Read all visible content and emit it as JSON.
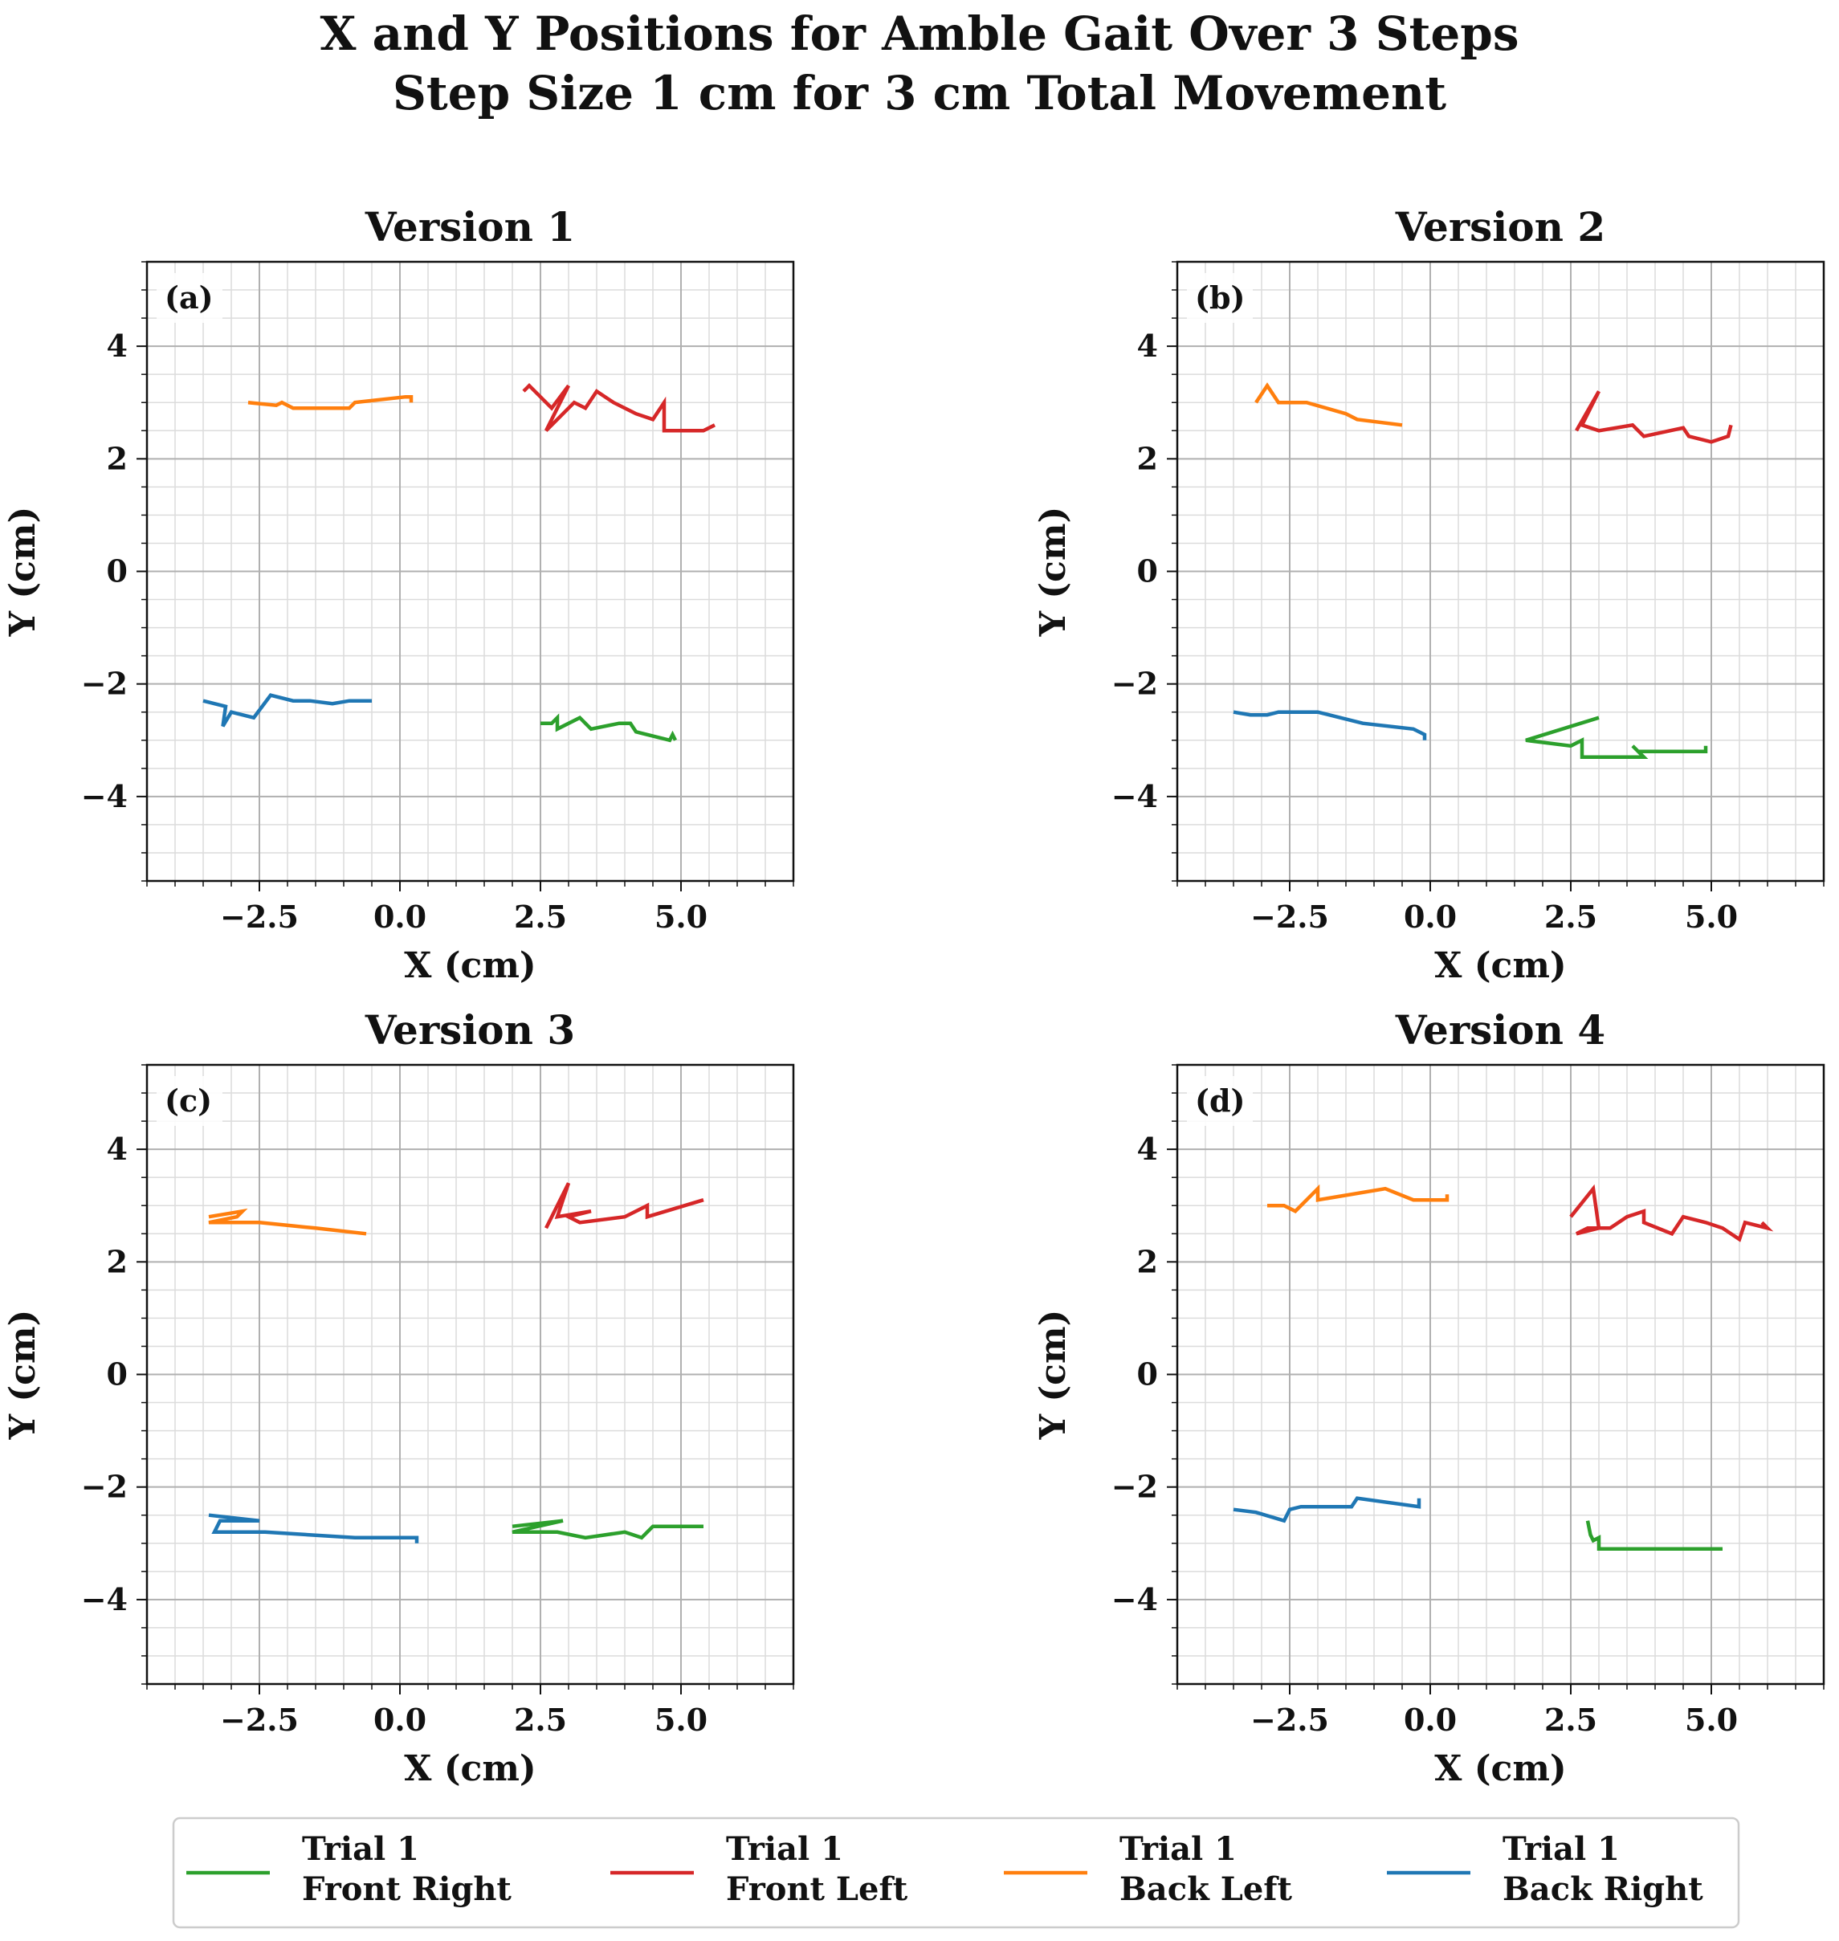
{
  "figure": {
    "title_line1": "X and Y Positions for Amble Gait Over 3 Steps",
    "title_line2": "Step Size 1 cm for 3 cm Total Movement"
  },
  "colors": {
    "front_right": "#2ca02c",
    "front_left": "#d62728",
    "back_left": "#ff7f0e",
    "back_right": "#1f77b4",
    "grid_major": "#b0b0b0",
    "grid_minor": "#dcdcdc"
  },
  "legend": {
    "placement": "bottom-center",
    "items": [
      {
        "line1": "Trial 1",
        "line2": "Front Right",
        "color_key": "front_right"
      },
      {
        "line1": "Trial 1",
        "line2": "Front Left",
        "color_key": "front_left"
      },
      {
        "line1": "Trial 1",
        "line2": "Back Left",
        "color_key": "back_left"
      },
      {
        "line1": "Trial 1",
        "line2": "Back Right",
        "color_key": "back_right"
      }
    ]
  },
  "chart_data": [
    {
      "type": "line",
      "title": "Version 1",
      "panel_label": "(a)",
      "xlabel": "X (cm)",
      "ylabel": "Y (cm)",
      "xlim": [
        -4.5,
        7.0
      ],
      "ylim": [
        -5.5,
        5.5
      ],
      "xticks": [
        -2.5,
        0.0,
        2.5,
        5.0
      ],
      "xtick_labels": [
        "−2.5",
        "0.0",
        "2.5",
        "5.0"
      ],
      "yticks": [
        -4,
        -2,
        0,
        2,
        4
      ],
      "ytick_labels": [
        "−4",
        "−2",
        "0",
        "2",
        "4"
      ],
      "grid": true,
      "series": [
        {
          "key": "back_left",
          "x": [
            -2.7,
            -2.2,
            -2.1,
            -1.9,
            -0.9,
            -0.8,
            0.1,
            0.2,
            0.2
          ],
          "y": [
            3.0,
            2.95,
            3.0,
            2.9,
            2.9,
            3.0,
            3.1,
            3.1,
            3.0
          ]
        },
        {
          "key": "front_left",
          "x": [
            2.2,
            2.3,
            2.5,
            2.7,
            3.0,
            2.6,
            3.1,
            3.3,
            3.5,
            3.8,
            4.2,
            4.5,
            4.7,
            4.7,
            5.1,
            5.4,
            5.6
          ],
          "y": [
            3.2,
            3.3,
            3.1,
            2.9,
            3.3,
            2.5,
            3.0,
            2.9,
            3.2,
            3.0,
            2.8,
            2.7,
            3.0,
            2.5,
            2.5,
            2.5,
            2.6
          ]
        },
        {
          "key": "back_right",
          "x": [
            -3.5,
            -3.1,
            -3.15,
            -3.0,
            -2.6,
            -2.3,
            -1.9,
            -1.6,
            -1.2,
            -0.9,
            -0.5
          ],
          "y": [
            -2.3,
            -2.4,
            -2.75,
            -2.5,
            -2.6,
            -2.2,
            -2.3,
            -2.3,
            -2.35,
            -2.3,
            -2.3
          ]
        },
        {
          "key": "front_right",
          "x": [
            2.5,
            2.7,
            2.8,
            2.8,
            3.2,
            3.4,
            3.9,
            4.1,
            4.2,
            4.4,
            4.8,
            4.85,
            4.9
          ],
          "y": [
            -2.7,
            -2.7,
            -2.6,
            -2.8,
            -2.6,
            -2.8,
            -2.7,
            -2.7,
            -2.85,
            -2.9,
            -3.0,
            -2.9,
            -3.0
          ]
        }
      ]
    },
    {
      "type": "line",
      "title": "Version 2",
      "panel_label": "(b)",
      "xlabel": "X (cm)",
      "ylabel": "Y (cm)",
      "xlim": [
        -4.5,
        7.0
      ],
      "ylim": [
        -5.5,
        5.5
      ],
      "xticks": [
        -2.5,
        0.0,
        2.5,
        5.0
      ],
      "xtick_labels": [
        "−2.5",
        "0.0",
        "2.5",
        "5.0"
      ],
      "yticks": [
        -4,
        -2,
        0,
        2,
        4
      ],
      "ytick_labels": [
        "−4",
        "−2",
        "0",
        "2",
        "4"
      ],
      "grid": true,
      "series": [
        {
          "key": "back_left",
          "x": [
            -3.1,
            -2.9,
            -2.7,
            -2.2,
            -1.5,
            -1.3,
            -0.5
          ],
          "y": [
            3.0,
            3.3,
            3.0,
            3.0,
            2.8,
            2.7,
            2.6
          ]
        },
        {
          "key": "front_left",
          "x": [
            2.6,
            3.0,
            2.7,
            3.0,
            3.6,
            3.8,
            4.5,
            4.6,
            5.0,
            5.3,
            5.35
          ],
          "y": [
            2.5,
            3.2,
            2.6,
            2.5,
            2.6,
            2.4,
            2.55,
            2.4,
            2.3,
            2.4,
            2.6
          ]
        },
        {
          "key": "back_right",
          "x": [
            -3.5,
            -3.2,
            -2.9,
            -2.7,
            -2.0,
            -1.2,
            -0.3,
            -0.1,
            -0.1
          ],
          "y": [
            -2.5,
            -2.55,
            -2.55,
            -2.5,
            -2.5,
            -2.7,
            -2.8,
            -2.9,
            -3.0
          ]
        },
        {
          "key": "front_right",
          "x": [
            3.0,
            1.7,
            2.5,
            2.7,
            2.7,
            3.8,
            3.6,
            3.7,
            4.9,
            4.9
          ],
          "y": [
            -2.6,
            -3.0,
            -3.1,
            -3.0,
            -3.3,
            -3.3,
            -3.1,
            -3.2,
            -3.2,
            -3.1
          ]
        }
      ]
    },
    {
      "type": "line",
      "title": "Version 3",
      "panel_label": "(c)",
      "xlabel": "X (cm)",
      "ylabel": "Y (cm)",
      "xlim": [
        -4.5,
        7.0
      ],
      "ylim": [
        -5.5,
        5.5
      ],
      "xticks": [
        -2.5,
        0.0,
        2.5,
        5.0
      ],
      "xtick_labels": [
        "−2.5",
        "0.0",
        "2.5",
        "5.0"
      ],
      "yticks": [
        -4,
        -2,
        0,
        2,
        4
      ],
      "ytick_labels": [
        "−4",
        "−2",
        "0",
        "2",
        "4"
      ],
      "grid": true,
      "series": [
        {
          "key": "back_left",
          "x": [
            -3.4,
            -2.8,
            -2.9,
            -3.4,
            -2.5,
            -1.5,
            -0.6
          ],
          "y": [
            2.8,
            2.9,
            2.8,
            2.7,
            2.7,
            2.6,
            2.5
          ]
        },
        {
          "key": "front_left",
          "x": [
            2.6,
            3.0,
            2.8,
            3.4,
            3.0,
            3.2,
            4.0,
            4.4,
            4.4,
            5.4
          ],
          "y": [
            2.6,
            3.4,
            2.8,
            2.9,
            2.8,
            2.7,
            2.8,
            3.0,
            2.8,
            3.1
          ]
        },
        {
          "key": "back_right",
          "x": [
            -3.4,
            -2.5,
            -3.2,
            -3.3,
            -2.4,
            -0.8,
            -0.4,
            -0.1,
            0.3,
            0.3
          ],
          "y": [
            -2.5,
            -2.6,
            -2.6,
            -2.8,
            -2.8,
            -2.9,
            -2.9,
            -2.9,
            -2.9,
            -3.0
          ]
        },
        {
          "key": "front_right",
          "x": [
            2.0,
            2.9,
            2.9,
            2.0,
            2.8,
            3.3,
            4.0,
            4.3,
            4.5,
            4.6,
            5.4
          ],
          "y": [
            -2.7,
            -2.6,
            -2.6,
            -2.8,
            -2.8,
            -2.9,
            -2.8,
            -2.9,
            -2.7,
            -2.7,
            -2.7
          ]
        }
      ]
    },
    {
      "type": "line",
      "title": "Version 4",
      "panel_label": "(d)",
      "xlabel": "X (cm)",
      "ylabel": "Y (cm)",
      "xlim": [
        -4.5,
        7.0
      ],
      "ylim": [
        -5.5,
        5.5
      ],
      "xticks": [
        -2.5,
        0.0,
        2.5,
        5.0
      ],
      "xtick_labels": [
        "−2.5",
        "0.0",
        "2.5",
        "5.0"
      ],
      "yticks": [
        -4,
        -2,
        0,
        2,
        4
      ],
      "ytick_labels": [
        "−4",
        "−2",
        "0",
        "2",
        "4"
      ],
      "grid": true,
      "series": [
        {
          "key": "back_left",
          "x": [
            -2.9,
            -2.6,
            -2.4,
            -2.0,
            -2.0,
            -0.8,
            -0.3,
            0.3,
            0.3
          ],
          "y": [
            3.0,
            3.0,
            2.9,
            3.3,
            3.1,
            3.3,
            3.1,
            3.1,
            3.2
          ]
        },
        {
          "key": "front_left",
          "x": [
            2.5,
            2.9,
            3.0,
            2.6,
            2.8,
            3.2,
            3.5,
            3.8,
            3.8,
            4.3,
            4.5,
            4.9,
            5.2,
            5.5,
            5.6,
            6.0,
            5.9
          ],
          "y": [
            2.8,
            3.3,
            2.6,
            2.5,
            2.6,
            2.6,
            2.8,
            2.9,
            2.7,
            2.5,
            2.8,
            2.7,
            2.6,
            2.4,
            2.7,
            2.6,
            2.7
          ]
        },
        {
          "key": "back_right",
          "x": [
            -3.5,
            -3.1,
            -2.6,
            -2.5,
            -2.3,
            -1.4,
            -1.3,
            -0.2,
            -0.2
          ],
          "y": [
            -2.4,
            -2.45,
            -2.6,
            -2.4,
            -2.35,
            -2.35,
            -2.2,
            -2.35,
            -2.2
          ]
        },
        {
          "key": "front_right",
          "x": [
            2.8,
            2.85,
            2.9,
            3.0,
            3.0,
            5.2
          ],
          "y": [
            -2.6,
            -2.85,
            -2.95,
            -2.9,
            -3.1,
            -3.1
          ]
        }
      ]
    }
  ]
}
